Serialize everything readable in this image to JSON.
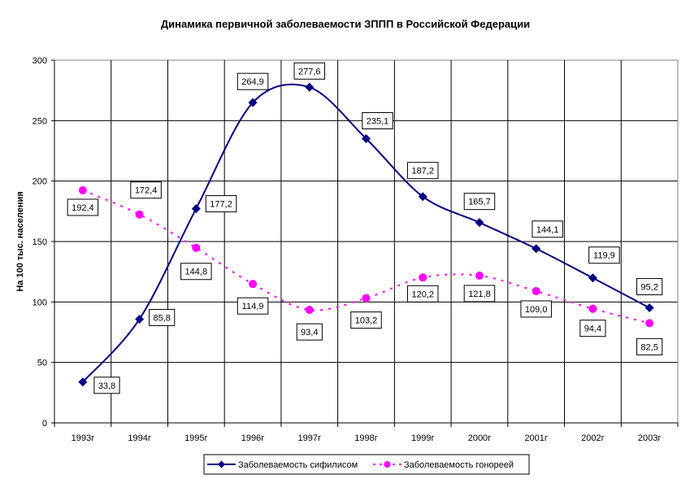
{
  "chart_data": {
    "type": "line",
    "title": "Динамика первичной заболеваемости ЗППП в Российской Федерации",
    "xlabel": "",
    "ylabel": "На 100 тыс. населения",
    "ylim": [
      0,
      300
    ],
    "yticks": [
      0,
      50,
      100,
      150,
      200,
      250,
      300
    ],
    "grid": true,
    "legend_position": "bottom",
    "categories": [
      "1993г",
      "1994г",
      "1995г",
      "1996г",
      "1997г",
      "1998г",
      "1999г",
      "2000г",
      "2001г",
      "2002г",
      "2003г"
    ],
    "series": [
      {
        "name": "Заболеваемость сифилисом",
        "color": "#000080",
        "marker": "diamond",
        "line_style": "solid",
        "values": [
          33.8,
          85.8,
          177.2,
          264.9,
          277.6,
          235.1,
          187.2,
          165.7,
          144.1,
          119.9,
          95.2
        ],
        "labels": [
          "33,8",
          "85,8",
          "177,2",
          "264,9",
          "277,6",
          "235,1",
          "187,2",
          "165,7",
          "144,1",
          "119,9",
          "95,2"
        ]
      },
      {
        "name": "Заболеваемость гонореей",
        "color": "#ff00ff",
        "marker": "circle",
        "line_style": "dashed",
        "values": [
          192.4,
          172.4,
          144.8,
          114.9,
          93.4,
          103.2,
          120.2,
          121.8,
          109.0,
          94.4,
          82.5
        ],
        "labels": [
          "192,4",
          "172,4",
          "144,8",
          "114,9",
          "93,4",
          "103,2",
          "120,2",
          "121,8",
          "109,0",
          "94,4",
          "82,5"
        ]
      }
    ]
  }
}
